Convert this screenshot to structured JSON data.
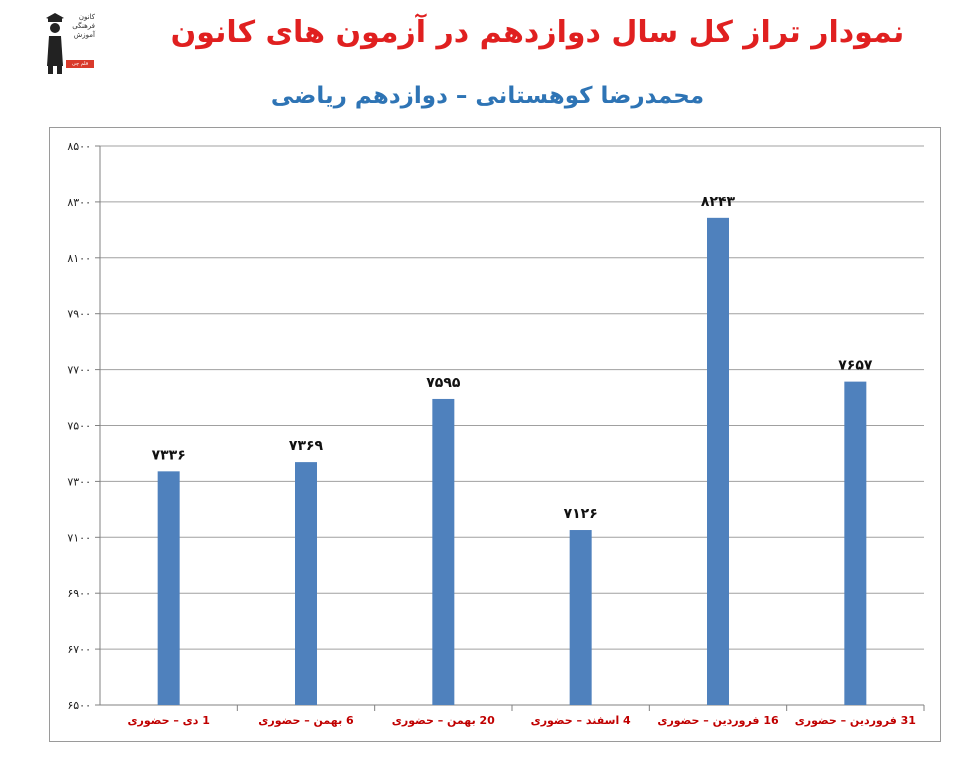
{
  "header": {
    "title": "نمودار تراز کل سال دوازدهم در آزمون های کانون",
    "subtitle": "محمدرضا کوهستانی – دوازدهم ریاضی"
  },
  "logo": {
    "text_lines": [
      "کانون",
      "فرهنگی",
      "آموزش"
    ],
    "badge": "قلم چی"
  },
  "colors": {
    "title": "#e02020",
    "subtitle": "#2e74b5",
    "bar": "#4f81bd",
    "grid": "#a0a0a0",
    "label": "#c00000"
  },
  "chart_data": {
    "type": "bar",
    "categories": [
      "1 دی – حضوری",
      "6 بهمن – حضوری",
      "20 بهمن – حضوری",
      "4 اسفند – حضوری",
      "16 فروردین – حضوری",
      "31 فروردین – حضوری"
    ],
    "values": [
      7336,
      7369,
      7595,
      7126,
      8243,
      7657
    ],
    "value_labels": [
      "۷۳۳۶",
      "۷۳۶۹",
      "۷۵۹۵",
      "۷۱۲۶",
      "۸۲۴۳",
      "۷۶۵۷"
    ],
    "ylim": [
      6500,
      8500
    ],
    "yticks": [
      6500,
      6700,
      6900,
      7100,
      7300,
      7500,
      7700,
      7900,
      8100,
      8300,
      8500
    ],
    "ytick_labels": [
      "۶۵۰۰",
      "۶۷۰۰",
      "۶۹۰۰",
      "۷۱۰۰",
      "۷۳۰۰",
      "۷۵۰۰",
      "۷۷۰۰",
      "۷۹۰۰",
      "۸۱۰۰",
      "۸۳۰۰",
      "۸۵۰۰"
    ],
    "grid": true,
    "legend": "none"
  }
}
